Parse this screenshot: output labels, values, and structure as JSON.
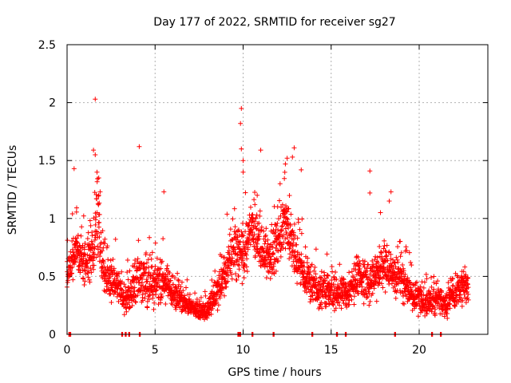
{
  "chart_data": {
    "type": "scatter",
    "title": "Day 177 of 2022, SRMTID for receiver sg27",
    "xlabel": "GPS time / hours",
    "ylabel": "SRMTID / TECUs",
    "xlim": [
      0,
      23.9
    ],
    "ylim": [
      0,
      2.5
    ],
    "xticks": [
      0,
      5,
      10,
      15,
      20
    ],
    "xtick_labels": [
      "0",
      "5",
      "10",
      "15",
      "20"
    ],
    "yticks": [
      0,
      0.5,
      1,
      1.5,
      2,
      2.5
    ],
    "ytick_labels": [
      "0",
      "0.5",
      "1",
      "1.5",
      "2",
      "2.5"
    ],
    "grid": true,
    "marker": "+",
    "series": [
      {
        "name": "SRMTID",
        "color": "#ff0000",
        "profile": [
          [
            0.0,
            0.55,
            0.25
          ],
          [
            0.5,
            0.7,
            0.3
          ],
          [
            1.0,
            0.6,
            0.25
          ],
          [
            1.5,
            0.7,
            0.3
          ],
          [
            1.7,
            1.1,
            0.45
          ],
          [
            2.0,
            0.6,
            0.3
          ],
          [
            2.5,
            0.45,
            0.25
          ],
          [
            3.0,
            0.4,
            0.2
          ],
          [
            3.5,
            0.3,
            0.2
          ],
          [
            4.0,
            0.45,
            0.3
          ],
          [
            4.5,
            0.45,
            0.3
          ],
          [
            5.0,
            0.45,
            0.3
          ],
          [
            5.5,
            0.45,
            0.25
          ],
          [
            6.0,
            0.35,
            0.2
          ],
          [
            7.0,
            0.25,
            0.12
          ],
          [
            7.5,
            0.2,
            0.1
          ],
          [
            8.0,
            0.2,
            0.1
          ],
          [
            8.5,
            0.35,
            0.2
          ],
          [
            9.0,
            0.55,
            0.25
          ],
          [
            9.5,
            0.7,
            0.3
          ],
          [
            10.0,
            0.65,
            0.3
          ],
          [
            10.5,
            0.9,
            0.35
          ],
          [
            11.0,
            0.75,
            0.3
          ],
          [
            11.5,
            0.6,
            0.3
          ],
          [
            12.0,
            0.8,
            0.35
          ],
          [
            12.5,
            1.0,
            0.4
          ],
          [
            13.0,
            0.65,
            0.3
          ],
          [
            13.5,
            0.5,
            0.25
          ],
          [
            14.0,
            0.4,
            0.2
          ],
          [
            15.0,
            0.35,
            0.2
          ],
          [
            16.0,
            0.35,
            0.2
          ],
          [
            16.5,
            0.5,
            0.25
          ],
          [
            17.0,
            0.45,
            0.25
          ],
          [
            17.5,
            0.5,
            0.25
          ],
          [
            18.0,
            0.6,
            0.3
          ],
          [
            18.5,
            0.5,
            0.25
          ],
          [
            19.0,
            0.45,
            0.25
          ],
          [
            19.5,
            0.35,
            0.2
          ],
          [
            20.0,
            0.3,
            0.2
          ],
          [
            20.5,
            0.25,
            0.15
          ],
          [
            21.0,
            0.3,
            0.15
          ],
          [
            21.5,
            0.25,
            0.15
          ],
          [
            22.0,
            0.35,
            0.2
          ],
          [
            22.5,
            0.45,
            0.25
          ],
          [
            22.8,
            0.4,
            0.2
          ]
        ],
        "outliers": [
          [
            1.6,
            2.03
          ],
          [
            1.5,
            1.59
          ],
          [
            1.6,
            1.55
          ],
          [
            1.7,
            1.4
          ],
          [
            4.1,
            1.62
          ],
          [
            5.5,
            1.23
          ],
          [
            0.4,
            1.43
          ],
          [
            9.9,
            1.95
          ],
          [
            9.85,
            1.82
          ],
          [
            9.9,
            1.6
          ],
          [
            10.0,
            1.5
          ],
          [
            10.0,
            1.4
          ],
          [
            11.0,
            1.59
          ],
          [
            12.5,
            1.52
          ],
          [
            12.4,
            1.47
          ],
          [
            12.9,
            1.61
          ],
          [
            12.8,
            1.53
          ],
          [
            13.3,
            1.42
          ],
          [
            17.2,
            1.41
          ],
          [
            17.2,
            1.22
          ],
          [
            18.4,
            1.23
          ],
          [
            18.3,
            1.15
          ],
          [
            17.8,
            1.05
          ],
          [
            12.1,
            1.3
          ],
          [
            10.8,
            1.2
          ],
          [
            1.8,
            1.35
          ],
          [
            1.8,
            1.2
          ]
        ],
        "zero_values_x": [
          0.1,
          0.15,
          3.1,
          3.3,
          3.5,
          4.1,
          9.7,
          9.8,
          10.5,
          11.7,
          13.9,
          15.3,
          15.8,
          18.6,
          20.7,
          21.2
        ]
      }
    ]
  }
}
